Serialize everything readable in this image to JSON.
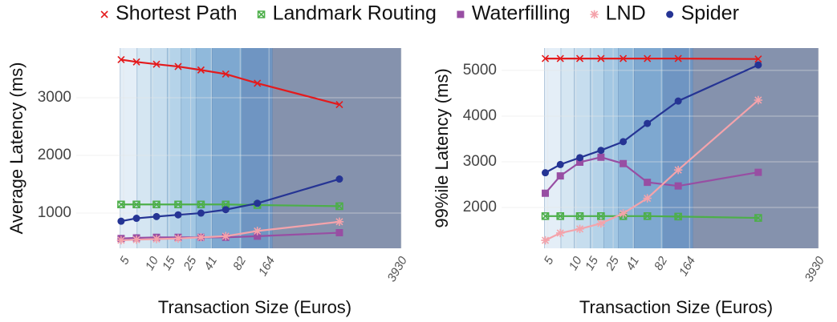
{
  "chart_data": [
    {
      "type": "line",
      "xscale": "log",
      "xlabel": "Transaction Size (Euros)",
      "ylabel": "Average Latency (ms)",
      "x": [
        4.7,
        6.8,
        11,
        18.5,
        32,
        58,
        124,
        890
      ],
      "xlim": [
        1.6,
        3930
      ],
      "xticks": [
        5,
        10,
        15,
        25,
        41,
        82,
        164,
        3930
      ],
      "ylim": [
        390,
        3860
      ],
      "yticks": [
        1000,
        2000,
        3000
      ],
      "grid": true,
      "bands": [
        4.6,
        6.9,
        9.6,
        14.2,
        19.9,
        28.4,
        42,
        86,
        178,
        3930
      ],
      "band_colors": [
        "#e4eef7",
        "#d5e6f2",
        "#c6ddee",
        "#b5d3e9",
        "#a3c7e3",
        "#90b9db",
        "#7ea8d0",
        "#6f95c2",
        "#8592ad"
      ],
      "series": [
        {
          "name": "Shortest Path",
          "color": "#e41a1c",
          "marker": "cross",
          "values": [
            3660,
            3620,
            3580,
            3540,
            3480,
            3410,
            3250,
            2880
          ]
        },
        {
          "name": "Landmark Routing",
          "color": "#4daf4a",
          "marker": "squarecross",
          "values": [
            1150,
            1150,
            1150,
            1150,
            1150,
            1150,
            1140,
            1120
          ]
        },
        {
          "name": "Waterfilling",
          "color": "#984ea3",
          "marker": "square",
          "values": [
            560,
            570,
            580,
            580,
            580,
            580,
            600,
            660
          ]
        },
        {
          "name": "LND",
          "color": "#f4a3ab",
          "marker": "asterisk",
          "values": [
            530,
            540,
            550,
            560,
            580,
            600,
            690,
            850
          ]
        },
        {
          "name": "Spider",
          "color": "#253494",
          "marker": "circle",
          "values": [
            860,
            910,
            940,
            970,
            1000,
            1060,
            1170,
            1590
          ]
        }
      ]
    },
    {
      "type": "line",
      "xscale": "log",
      "xlabel": "Transaction Size (Euros)",
      "ylabel": "99%ile Latency (ms)",
      "x": [
        4.7,
        6.8,
        11,
        18.5,
        32,
        58,
        124,
        890
      ],
      "xlim": [
        1.6,
        3930
      ],
      "xticks": [
        5,
        10,
        15,
        25,
        41,
        82,
        164,
        3930
      ],
      "ylim": [
        1105,
        5490
      ],
      "yticks": [
        2000,
        3000,
        4000,
        5000
      ],
      "grid": true,
      "bands": [
        4.6,
        6.9,
        9.6,
        14.2,
        19.9,
        28.4,
        42,
        86,
        178,
        3930
      ],
      "band_colors": [
        "#e4eef7",
        "#d5e6f2",
        "#c6ddee",
        "#b5d3e9",
        "#a3c7e3",
        "#90b9db",
        "#7ea8d0",
        "#6f95c2",
        "#8592ad"
      ],
      "series": [
        {
          "name": "Shortest Path",
          "color": "#e41a1c",
          "marker": "cross",
          "values": [
            5260,
            5260,
            5260,
            5260,
            5260,
            5260,
            5260,
            5250
          ]
        },
        {
          "name": "Landmark Routing",
          "color": "#4daf4a",
          "marker": "squarecross",
          "values": [
            1810,
            1810,
            1810,
            1810,
            1810,
            1810,
            1800,
            1770
          ]
        },
        {
          "name": "Waterfilling",
          "color": "#984ea3",
          "marker": "square",
          "values": [
            2310,
            2690,
            2990,
            3100,
            2960,
            2550,
            2470,
            2770
          ]
        },
        {
          "name": "LND",
          "color": "#f4a3ab",
          "marker": "asterisk",
          "values": [
            1280,
            1440,
            1530,
            1650,
            1870,
            2200,
            2820,
            4350
          ]
        },
        {
          "name": "Spider",
          "color": "#253494",
          "marker": "circle",
          "values": [
            2760,
            2940,
            3090,
            3250,
            3440,
            3840,
            4330,
            5120
          ]
        }
      ]
    }
  ]
}
